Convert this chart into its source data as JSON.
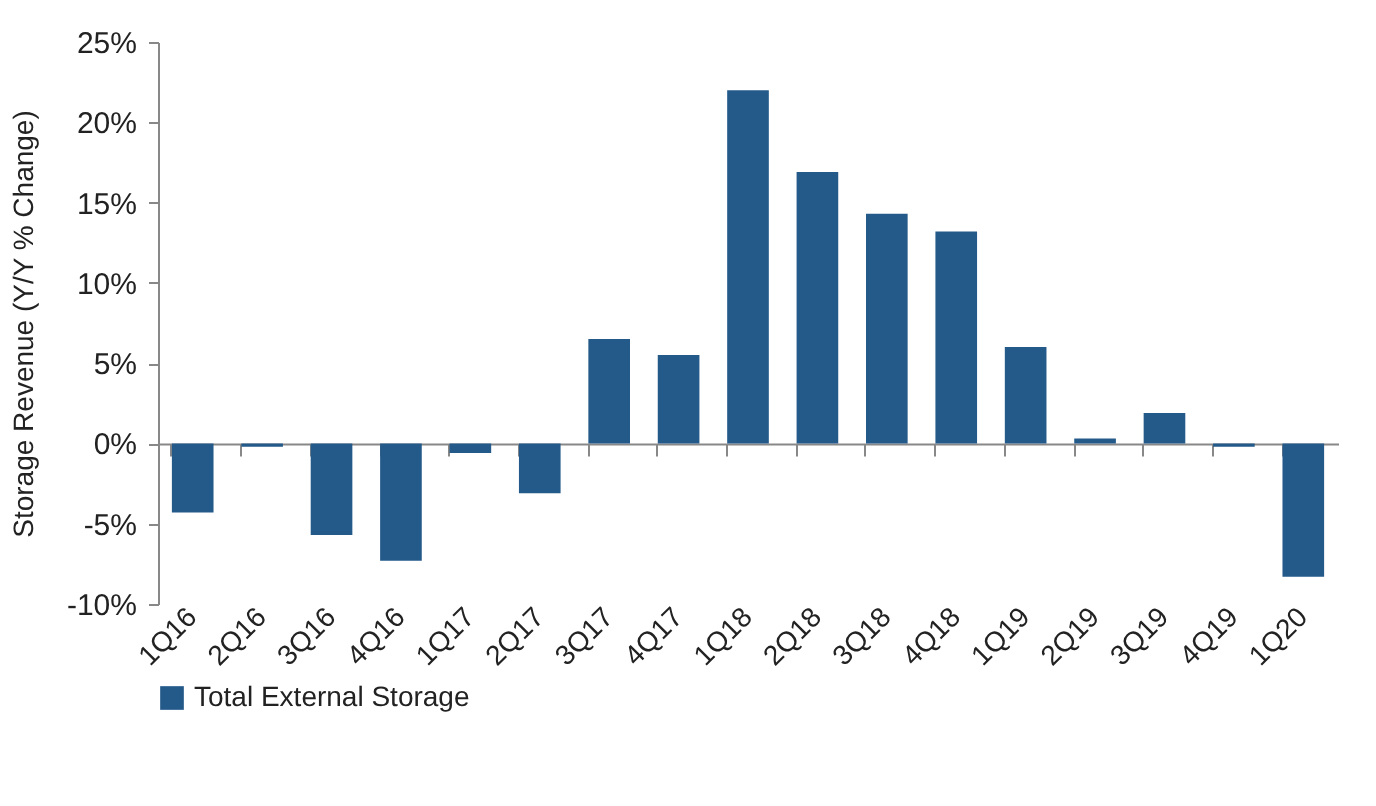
{
  "chart_data": {
    "type": "bar",
    "ylabel": "Storage Revenue (Y/Y % Change)",
    "categories": [
      "1Q16",
      "2Q16",
      "3Q16",
      "4Q16",
      "1Q17",
      "2Q17",
      "3Q17",
      "4Q17",
      "1Q18",
      "2Q18",
      "3Q18",
      "4Q18",
      "1Q19",
      "2Q19",
      "3Q19",
      "4Q19",
      "1Q20"
    ],
    "series": [
      {
        "name": "Total External Storage",
        "color": "#245a8a",
        "values": [
          -4.3,
          -0.2,
          -5.7,
          -7.3,
          -0.6,
          -3.1,
          6.5,
          5.5,
          22.0,
          16.9,
          14.3,
          13.2,
          6.0,
          0.3,
          1.9,
          -0.2,
          -8.3
        ]
      }
    ],
    "ylim": [
      -10,
      25
    ],
    "yticks": [
      {
        "value": -10,
        "label": "-10%"
      },
      {
        "value": -5,
        "label": "-5%"
      },
      {
        "value": 0,
        "label": "0%"
      },
      {
        "value": 5,
        "label": "5%"
      },
      {
        "value": 10,
        "label": "10%"
      },
      {
        "value": 15,
        "label": "15%"
      },
      {
        "value": 20,
        "label": "20%"
      },
      {
        "value": 25,
        "label": "25%"
      }
    ],
    "legend": "bottom"
  }
}
